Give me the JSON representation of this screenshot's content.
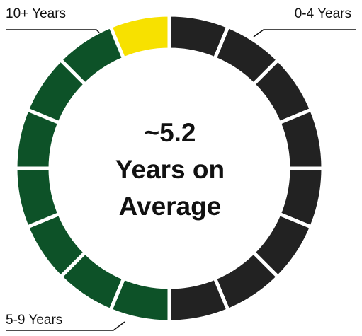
{
  "chart_data": {
    "type": "donut",
    "categories": [
      "0-4 Years",
      "5-9 Years",
      "10+ Years"
    ],
    "values": [
      8,
      7,
      1
    ],
    "colors": [
      "#222222",
      "#0d5228",
      "#f7e100"
    ],
    "annotation": [
      "~5.2",
      "Years on",
      "Average"
    ]
  }
}
